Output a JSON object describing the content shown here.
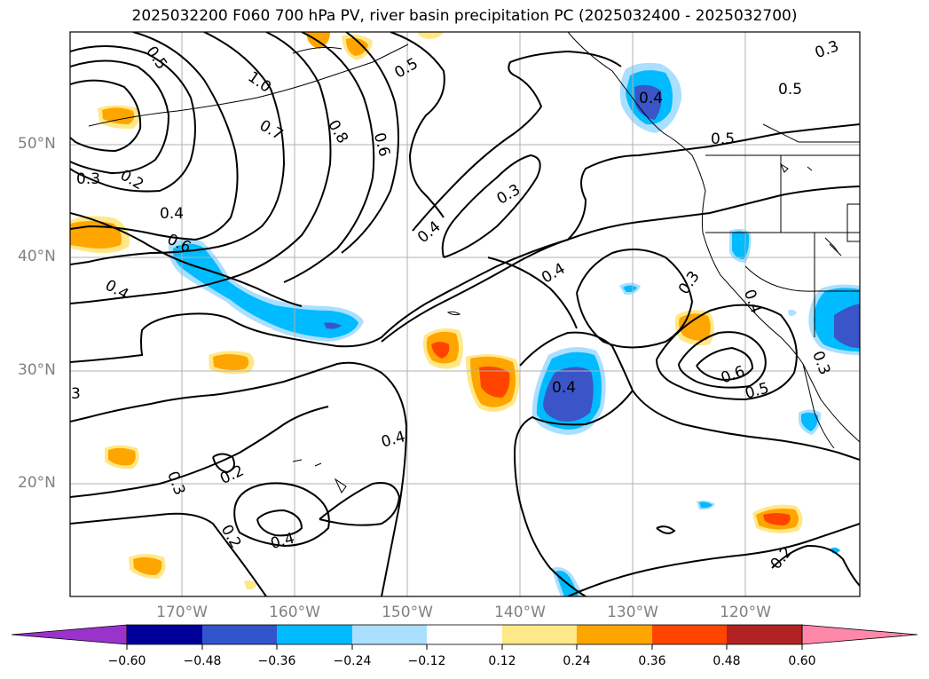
{
  "title": "2025032200 F060 700 hPa PV, river basin precipitation PC (2025032400 - 2025032700)",
  "lat_labels": [
    "50°N",
    "40°N",
    "30°N",
    "20°N"
  ],
  "lon_labels": [
    "170°W",
    "160°W",
    "150°W",
    "140°W",
    "130°W",
    "120°W"
  ],
  "contour_labels": [
    "0.5",
    "1.0",
    "0.5",
    "0.4",
    "0.3",
    "0.5",
    "0.7",
    "0.8",
    "0.6",
    "0.3",
    "0.2",
    "0.4",
    "0.6",
    "0.4",
    "0.3",
    "0.4",
    "0.4",
    "0.5",
    "0.3",
    "0.4",
    "0.6",
    "0.5",
    "0.3",
    "0.4",
    "0.4",
    "0.2",
    "0.3",
    "0.2",
    "0.4",
    "3",
    "0.2"
  ],
  "colorbar": {
    "ticks": [
      "−0.60",
      "−0.48",
      "−0.36",
      "−0.24",
      "−0.12",
      "0.12",
      "0.24",
      "0.36",
      "0.48",
      "0.60"
    ],
    "colors": [
      "#9933cc",
      "#000099",
      "#3355cc",
      "#00bbff",
      "#aadfff",
      "#ffffff",
      "#ffe888",
      "#ffa500",
      "#ff4400",
      "#b22222",
      "#ff88aa"
    ]
  },
  "colors": {
    "blue_dark": "#3a55c8",
    "blue_mid": "#00bbff",
    "blue_light": "#aadfff",
    "yellow": "#ffe888",
    "orange": "#ffa500",
    "red": "#ff4400"
  }
}
